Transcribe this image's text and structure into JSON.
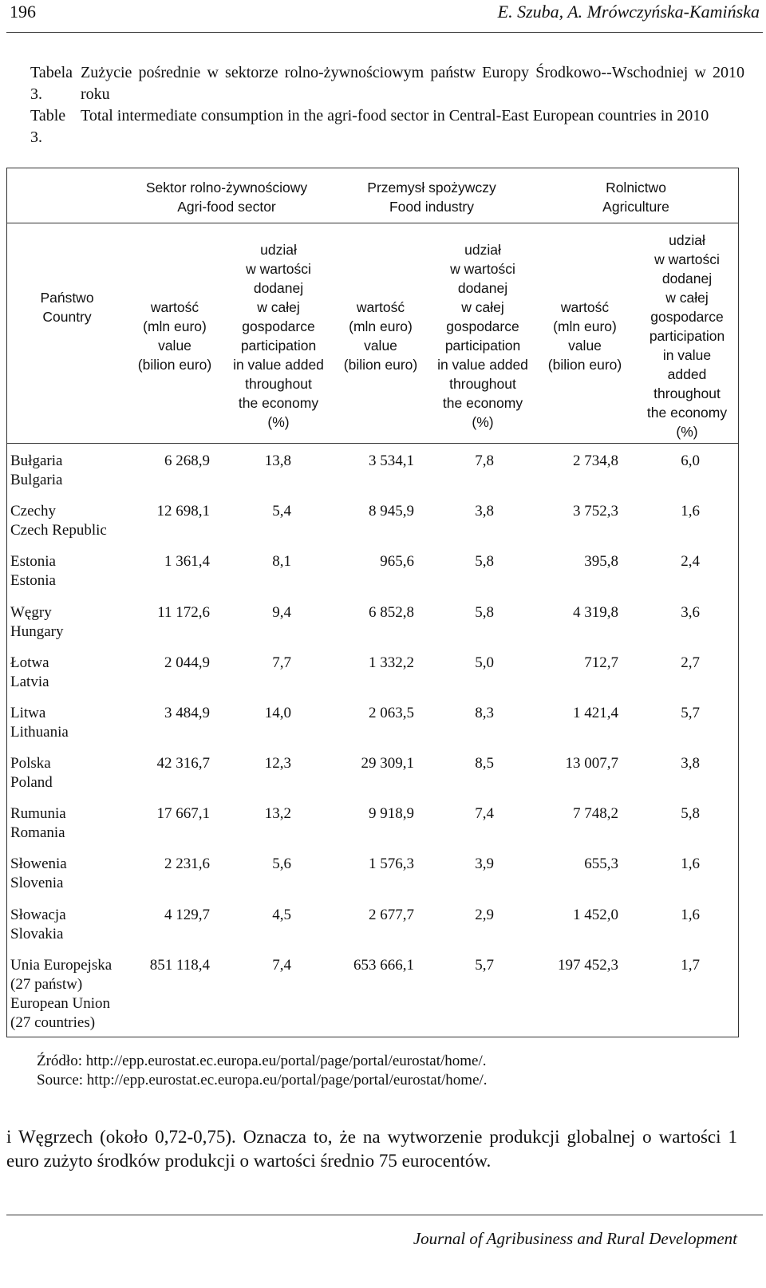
{
  "header": {
    "page_number": "196",
    "authors": "E. Szuba, A. Mrówczyńska-Kamińska"
  },
  "caption": {
    "pl_label": "Tabela 3.",
    "pl_text": "Zużycie pośrednie w sektorze rolno-żywnościowym państw Europy Środkowo--Wschodniej w 2010 roku",
    "en_label": "Table 3.",
    "en_text": "Total intermediate consumption in the agri-food sector in Central-East European countries in 2010"
  },
  "table": {
    "groups": [
      {
        "pl": "Sektor rolno-żywnościowy",
        "en": "Agri-food sector"
      },
      {
        "pl": "Przemysł spożywczy",
        "en": "Food industry"
      },
      {
        "pl": "Rolnictwo",
        "en": "Agriculture"
      }
    ],
    "country_header": {
      "pl": "Państwo",
      "en": "Country"
    },
    "value_header": [
      "wartość",
      "(mln euro)",
      "value",
      "(bilion euro)"
    ],
    "share_header": [
      "udział",
      "w wartości",
      "dodanej",
      "w całej",
      "gospodarce",
      "participation",
      "in value added",
      "throughout",
      "the economy",
      "(%)"
    ],
    "share_header_agri": [
      "udział",
      "w wartości",
      "dodanej",
      "w całej",
      "gospodarce",
      "participation",
      "in value",
      "added",
      "throughout",
      "the economy",
      "(%)"
    ],
    "rows": [
      {
        "country": [
          "Bułgaria",
          "Bulgaria"
        ],
        "values": [
          "6 268,9",
          "13,8",
          "3 534,1",
          "7,8",
          "2 734,8",
          "6,0"
        ]
      },
      {
        "country": [
          "Czechy",
          "Czech Republic"
        ],
        "values": [
          "12 698,1",
          "5,4",
          "8 945,9",
          "3,8",
          "3 752,3",
          "1,6"
        ]
      },
      {
        "country": [
          "Estonia",
          "Estonia"
        ],
        "values": [
          "1 361,4",
          "8,1",
          "965,6",
          "5,8",
          "395,8",
          "2,4"
        ]
      },
      {
        "country": [
          "Węgry",
          "Hungary"
        ],
        "values": [
          "11 172,6",
          "9,4",
          "6 852,8",
          "5,8",
          "4 319,8",
          "3,6"
        ]
      },
      {
        "country": [
          "Łotwa",
          "Latvia"
        ],
        "values": [
          "2 044,9",
          "7,7",
          "1 332,2",
          "5,0",
          "712,7",
          "2,7"
        ]
      },
      {
        "country": [
          "Litwa",
          "Lithuania"
        ],
        "values": [
          "3 484,9",
          "14,0",
          "2 063,5",
          "8,3",
          "1 421,4",
          "5,7"
        ]
      },
      {
        "country": [
          "Polska",
          "Poland"
        ],
        "values": [
          "42 316,7",
          "12,3",
          "29 309,1",
          "8,5",
          "13 007,7",
          "3,8"
        ]
      },
      {
        "country": [
          "Rumunia",
          "Romania"
        ],
        "values": [
          "17 667,1",
          "13,2",
          "9 918,9",
          "7,4",
          "7 748,2",
          "5,8"
        ]
      },
      {
        "country": [
          "Słowenia",
          "Slovenia"
        ],
        "values": [
          "2 231,6",
          "5,6",
          "1 576,3",
          "3,9",
          "655,3",
          "1,6"
        ]
      },
      {
        "country": [
          "Słowacja",
          "Slovakia"
        ],
        "values": [
          "4 129,7",
          "4,5",
          "2 677,7",
          "2,9",
          "1 452,0",
          "1,6"
        ]
      },
      {
        "country": [
          "Unia Europejska",
          "(27 państw)",
          "European Union",
          "(27 countries)"
        ],
        "values": [
          "851 118,4",
          "7,4",
          "653 666,1",
          "5,7",
          "197 452,3",
          "1,7"
        ]
      }
    ]
  },
  "source": {
    "pl": "Źródło: http://epp.eurostat.ec.europa.eu/portal/page/portal/eurostat/home/.",
    "en": "Source: http://epp.eurostat.ec.europa.eu/portal/page/portal/eurostat/home/."
  },
  "body_text": "i Węgrzech (około 0,72-0,75). Oznacza to, że na wytworzenie produkcji globalnej o wartości 1 euro zużyto środków produkcji o wartości średnio 75 eurocentów.",
  "footer": {
    "journal": "Journal of Agribusiness and Rural Development"
  }
}
